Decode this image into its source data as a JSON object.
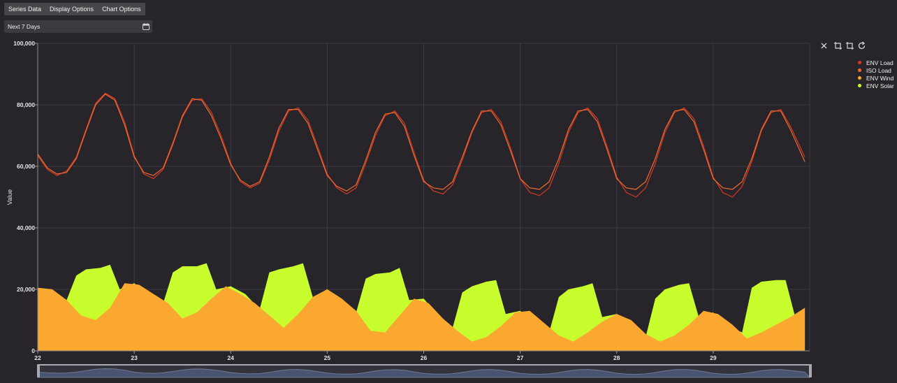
{
  "tabs": [
    "Series Data",
    "Display Options",
    "Chart Options"
  ],
  "date_range": {
    "value": "Next 7 Days"
  },
  "toolbar_icons": [
    "close-icon",
    "box-zoom-icon",
    "zoom-back-icon",
    "reset-icon"
  ],
  "colors": {
    "background": "#27252a",
    "grid": "#3d3c42",
    "env_load": "#d43a26",
    "iso_load": "#f06a2f",
    "env_wind": "#fba831",
    "env_solar": "#c8fd2e"
  },
  "chart_data": {
    "type": "area",
    "ylabel": "Value",
    "xlabel": "",
    "ylim": [
      0,
      100000
    ],
    "xlim": [
      22,
      30
    ],
    "yticks": [
      "0",
      "20,000",
      "40,000",
      "60,000",
      "80,000",
      "100,000"
    ],
    "xticks": [
      "22",
      "23",
      "24",
      "25",
      "26",
      "27",
      "28",
      "29"
    ],
    "grid": true,
    "legend_position": "top-right",
    "legend": [
      "ENV Load",
      "ISO Load",
      "ENV Wind",
      "ENV Solar"
    ],
    "series": [
      {
        "name": "ENV Load",
        "type": "line",
        "x": [
          22,
          22.1,
          22.2,
          22.3,
          22.4,
          22.5,
          22.6,
          22.7,
          22.8,
          22.9,
          23,
          23.1,
          23.2,
          23.3,
          23.4,
          23.5,
          23.6,
          23.7,
          23.8,
          23.9,
          24,
          24.1,
          24.2,
          24.3,
          24.4,
          24.5,
          24.6,
          24.7,
          24.8,
          24.9,
          25,
          25.1,
          25.2,
          25.3,
          25.4,
          25.5,
          25.6,
          25.7,
          25.8,
          25.9,
          26,
          26.1,
          26.2,
          26.3,
          26.4,
          26.5,
          26.6,
          26.7,
          26.8,
          26.9,
          27,
          27.1,
          27.2,
          27.3,
          27.4,
          27.5,
          27.6,
          27.7,
          27.8,
          27.9,
          28,
          28.1,
          28.2,
          28.3,
          28.4,
          28.5,
          28.6,
          28.7,
          28.8,
          28.9,
          29,
          29.1,
          29.2,
          29.3,
          29.4,
          29.5,
          29.6,
          29.7,
          29.8,
          29.95
        ],
        "y": [
          63500,
          59000,
          57000,
          58500,
          63000,
          72000,
          80500,
          83800,
          82000,
          74500,
          63500,
          57500,
          56000,
          59000,
          67000,
          76000,
          81500,
          82000,
          77500,
          70000,
          61000,
          55000,
          53000,
          54500,
          62000,
          71500,
          78000,
          79000,
          75000,
          66500,
          57500,
          53000,
          51000,
          53000,
          61000,
          70000,
          76500,
          78000,
          74000,
          64500,
          55500,
          52000,
          51000,
          54000,
          62000,
          71000,
          77500,
          78500,
          74500,
          66000,
          56000,
          51500,
          50500,
          53000,
          61000,
          71000,
          77500,
          79000,
          75500,
          66500,
          56500,
          51500,
          50000,
          53000,
          61000,
          71000,
          77500,
          79000,
          75500,
          66500,
          56500,
          51500,
          50000,
          53500,
          61500,
          71500,
          77500,
          78500,
          73000,
          63000
        ]
      },
      {
        "name": "ISO Load",
        "type": "line",
        "x": [
          22,
          22.1,
          22.2,
          22.3,
          22.4,
          22.5,
          22.6,
          22.7,
          22.8,
          22.9,
          23,
          23.1,
          23.2,
          23.3,
          23.4,
          23.5,
          23.6,
          23.7,
          23.8,
          23.9,
          24,
          24.1,
          24.2,
          24.3,
          24.4,
          24.5,
          24.6,
          24.7,
          24.8,
          24.9,
          25,
          25.1,
          25.2,
          25.3,
          25.4,
          25.5,
          25.6,
          25.7,
          25.8,
          25.9,
          26,
          26.1,
          26.2,
          26.3,
          26.4,
          26.5,
          26.6,
          26.7,
          26.8,
          26.9,
          27,
          27.1,
          27.2,
          27.3,
          27.4,
          27.5,
          27.6,
          27.7,
          27.8,
          27.9,
          28,
          28.1,
          28.2,
          28.3,
          28.4,
          28.5,
          28.6,
          28.7,
          28.8,
          28.9,
          29,
          29.1,
          29.2,
          29.3,
          29.4,
          29.5,
          29.6,
          29.7,
          29.8,
          29.95
        ],
        "y": [
          64000,
          59500,
          57500,
          58000,
          62500,
          71500,
          80000,
          83500,
          81500,
          73500,
          63000,
          58000,
          57000,
          59500,
          67500,
          76500,
          82000,
          81500,
          76500,
          69000,
          60500,
          55500,
          53500,
          55000,
          63000,
          72500,
          78500,
          78500,
          74000,
          65500,
          57000,
          53500,
          52000,
          54000,
          62000,
          71000,
          77000,
          77500,
          73000,
          63500,
          55000,
          53000,
          52500,
          55000,
          63000,
          71500,
          78000,
          78000,
          73500,
          65000,
          56000,
          53000,
          52500,
          55000,
          62500,
          72000,
          78000,
          78500,
          74500,
          65500,
          56000,
          53000,
          52500,
          55000,
          62500,
          72000,
          78000,
          78500,
          74500,
          65500,
          56000,
          53000,
          52500,
          55000,
          62500,
          72000,
          78000,
          78000,
          72000,
          61500
        ]
      },
      {
        "name": "ENV Wind",
        "type": "area",
        "x": [
          22,
          22.15,
          22.3,
          22.45,
          22.6,
          22.75,
          22.9,
          23.05,
          23.2,
          23.35,
          23.5,
          23.65,
          23.8,
          23.95,
          24.1,
          24.25,
          24.4,
          24.55,
          24.7,
          24.85,
          25,
          25.15,
          25.3,
          25.45,
          25.6,
          25.75,
          25.9,
          26.05,
          26.2,
          26.35,
          26.5,
          26.65,
          26.8,
          26.95,
          27.1,
          27.25,
          27.4,
          27.55,
          27.7,
          27.85,
          28,
          28.15,
          28.3,
          28.45,
          28.6,
          28.75,
          28.9,
          29.05,
          29.2,
          29.35,
          29.5,
          29.65,
          29.8,
          29.95
        ],
        "y": [
          20500,
          20000,
          16500,
          11500,
          10000,
          14000,
          22000,
          21500,
          18500,
          15500,
          10500,
          12500,
          17000,
          21000,
          18500,
          15500,
          11500,
          7500,
          12000,
          17500,
          20000,
          17000,
          13000,
          6500,
          6000,
          11500,
          17000,
          15500,
          10500,
          6500,
          3000,
          4500,
          8000,
          12500,
          13000,
          9000,
          5000,
          3000,
          6000,
          9500,
          12000,
          10000,
          5500,
          3000,
          5000,
          8500,
          13000,
          12000,
          8500,
          4000,
          6000,
          8500,
          11000,
          14000
        ]
      },
      {
        "name": "ENV Solar",
        "type": "area",
        "x": [
          22,
          22.15,
          22.3,
          22.4,
          22.5,
          22.65,
          22.75,
          22.85,
          23,
          23.15,
          23.3,
          23.4,
          23.5,
          23.65,
          23.75,
          23.85,
          24,
          24.15,
          24.3,
          24.4,
          24.5,
          24.65,
          24.75,
          24.85,
          25,
          25.15,
          25.3,
          25.4,
          25.5,
          25.65,
          25.75,
          25.85,
          26,
          26.15,
          26.3,
          26.4,
          26.5,
          26.65,
          26.75,
          26.85,
          27,
          27.15,
          27.3,
          27.4,
          27.5,
          27.65,
          27.75,
          27.85,
          28,
          28.15,
          28.3,
          28.4,
          28.5,
          28.65,
          28.75,
          28.85,
          29,
          29.15,
          29.3,
          29.4,
          29.5,
          29.65,
          29.75,
          29.85,
          29.95
        ],
        "y": [
          20500,
          20000,
          16500,
          24500,
          26500,
          27000,
          28000,
          20000,
          22000,
          18500,
          15500,
          25500,
          27500,
          27500,
          28500,
          20000,
          21000,
          18500,
          13500,
          25500,
          26500,
          27500,
          28500,
          17500,
          20000,
          17000,
          12500,
          23500,
          25000,
          25500,
          27000,
          16500,
          17000,
          11500,
          7500,
          19000,
          21000,
          22500,
          23000,
          12000,
          13000,
          9000,
          6000,
          17500,
          20000,
          21000,
          22000,
          11000,
          12000,
          7500,
          4500,
          17000,
          20000,
          21500,
          22000,
          11000,
          12500,
          8000,
          6000,
          20500,
          22500,
          23000,
          23000,
          11000,
          14000
        ]
      }
    ]
  }
}
